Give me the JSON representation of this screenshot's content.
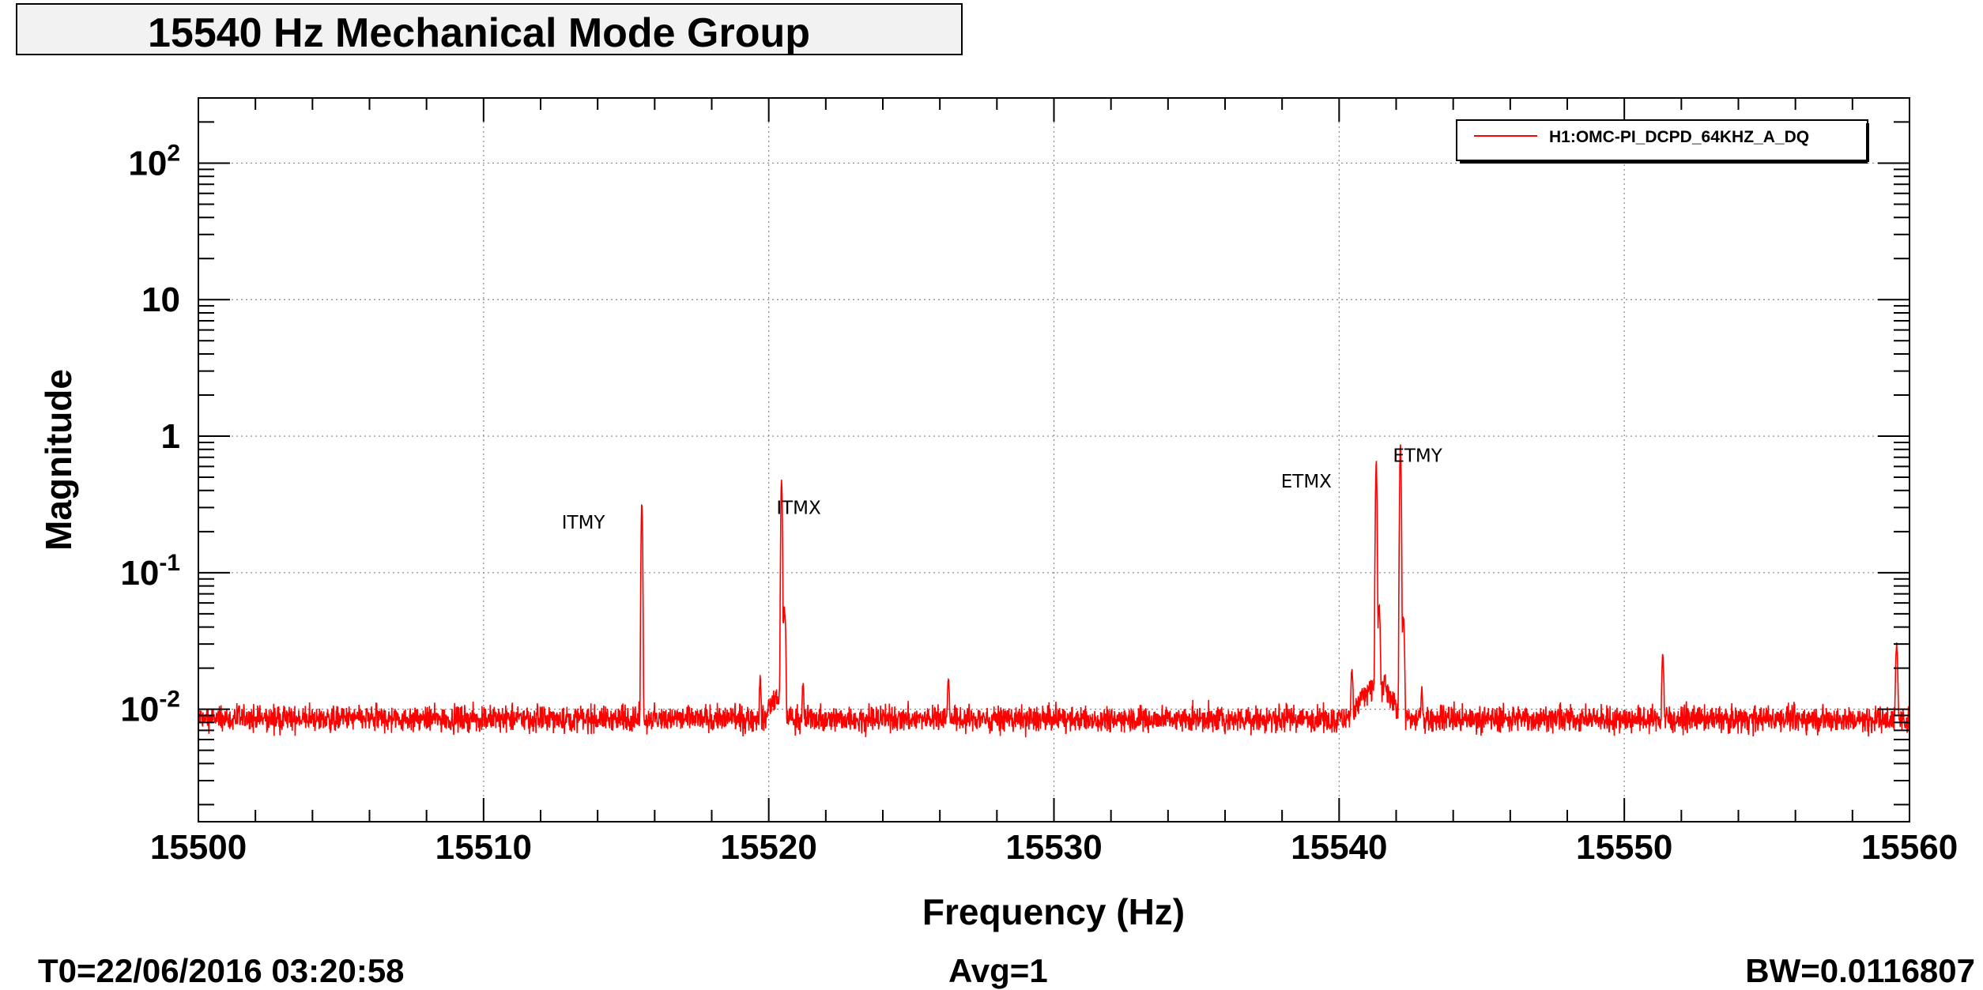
{
  "title": "15540 Hz Mechanical Mode Group",
  "footer": {
    "t0": "T0=22/06/2016 03:20:58",
    "avg": "Avg=1",
    "bw": "BW=0.0116807"
  },
  "colors": {
    "series": "#ff0000",
    "grid": "#888888",
    "axis": "#000000",
    "title_bg": "#f2f2f2"
  },
  "chart_data": {
    "type": "line",
    "title": "15540 Hz Mechanical Mode Group",
    "xlabel": "Frequency (Hz)",
    "ylabel": "Magnitude",
    "xlim": [
      15500,
      15560
    ],
    "ylim": [
      0.0015,
      300
    ],
    "yscale": "log",
    "grid": true,
    "legend_position": "top-right",
    "x_ticks": [
      15500,
      15510,
      15520,
      15530,
      15540,
      15550,
      15560
    ],
    "x_tick_labels": [
      "15500",
      "15510",
      "15520",
      "15530",
      "15540",
      "15550",
      "15560"
    ],
    "y_ticks": [
      0.01,
      0.1,
      1,
      10,
      100
    ],
    "y_tick_labels": [
      {
        "base": "10",
        "exp": "-2"
      },
      {
        "base": "10",
        "exp": "-1"
      },
      {
        "base": "1",
        "exp": ""
      },
      {
        "base": "10",
        "exp": ""
      },
      {
        "base": "10",
        "exp": "2"
      }
    ],
    "series": [
      {
        "name": "H1:OMC-PI_DCPD_64KHZ_A_DQ",
        "color": "#ff0000",
        "noise_floor": 0.0085,
        "peaks": [
          {
            "x": 15515.55,
            "y": 0.34
          },
          {
            "x": 15519.7,
            "y": 0.018
          },
          {
            "x": 15520.0,
            "y": 0.013
          },
          {
            "x": 15520.45,
            "y": 0.5
          },
          {
            "x": 15520.55,
            "y": 0.06
          },
          {
            "x": 15521.2,
            "y": 0.016
          },
          {
            "x": 15526.3,
            "y": 0.018
          },
          {
            "x": 15540.45,
            "y": 0.022
          },
          {
            "x": 15540.8,
            "y": 0.015
          },
          {
            "x": 15541.3,
            "y": 0.7
          },
          {
            "x": 15541.4,
            "y": 0.06
          },
          {
            "x": 15541.6,
            "y": 0.02
          },
          {
            "x": 15542.15,
            "y": 0.92
          },
          {
            "x": 15542.25,
            "y": 0.05
          },
          {
            "x": 15542.9,
            "y": 0.016
          },
          {
            "x": 15551.35,
            "y": 0.026
          },
          {
            "x": 15559.55,
            "y": 0.031
          }
        ]
      }
    ],
    "annotations": [
      {
        "text": "ITMY",
        "x": 15513.5,
        "y": 0.21
      },
      {
        "text": "ITMX",
        "x": 15521.05,
        "y": 0.27
      },
      {
        "text": "ETMX",
        "x": 15538.85,
        "y": 0.42
      },
      {
        "text": "ETMY",
        "x": 15542.75,
        "y": 0.65
      }
    ]
  }
}
